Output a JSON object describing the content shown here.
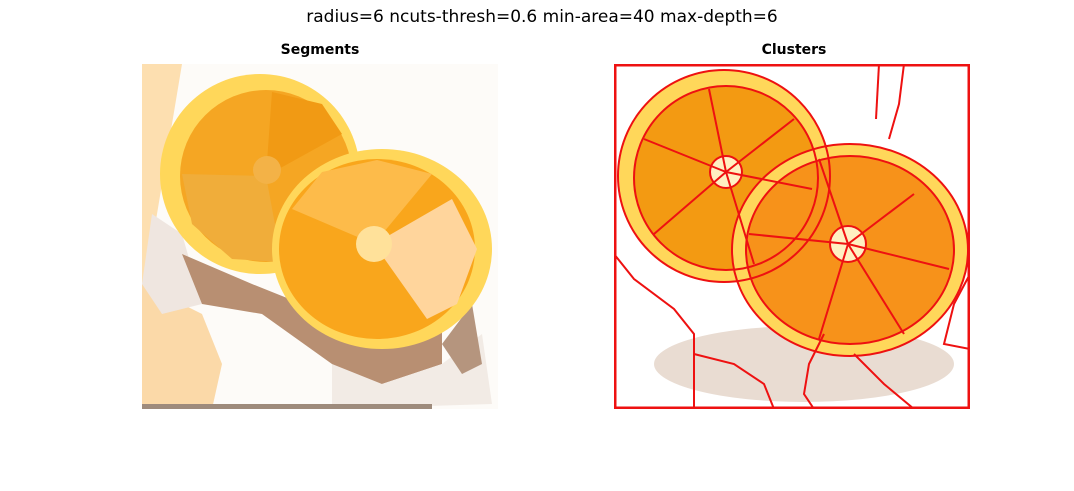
{
  "figure": {
    "suptitle": "radius=6 ncuts-thresh=0.6 min-area=40 max-depth=6"
  },
  "panels": [
    {
      "title": "Segments"
    },
    {
      "title": "Clusters"
    }
  ],
  "colors": {
    "background": "#ffffff",
    "boundary": "#ee1111",
    "rind": "#ffd75a",
    "flesh_orange": "#f7a21c",
    "flesh_light": "#ffd194",
    "core": "#ffe6a6",
    "shadow": "#b48e72"
  }
}
